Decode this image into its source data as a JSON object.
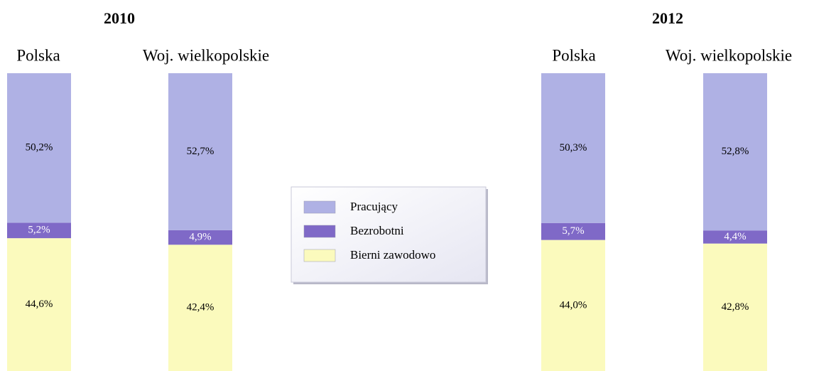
{
  "chart_data": {
    "type": "bar",
    "stacked": true,
    "groups": [
      "2010",
      "2012"
    ],
    "categories": [
      "Polska",
      "Woj. wielkopolskie",
      "Polska",
      "Woj. wielkopolskie"
    ],
    "ylim": [
      0,
      100
    ],
    "series": [
      {
        "name": "Pracujący",
        "color": "#afb1e4",
        "values": [
          50.2,
          52.7,
          50.3,
          52.8
        ],
        "value_labels": [
          "50,2%",
          "52,7%",
          "50,3%",
          "52,8%"
        ]
      },
      {
        "name": "Bezrobotni",
        "color": "#7f69c7",
        "values": [
          5.2,
          4.9,
          5.7,
          4.4
        ],
        "value_labels": [
          "5,2%",
          "4,9%",
          "5,7%",
          "4,4%"
        ]
      },
      {
        "name": "Bierni zawodowo",
        "color": "#fbfabd",
        "values": [
          44.6,
          42.4,
          44.0,
          42.8
        ],
        "value_labels": [
          "44,6%",
          "42,4%",
          "44,0%",
          "42,8%"
        ]
      }
    ]
  }
}
